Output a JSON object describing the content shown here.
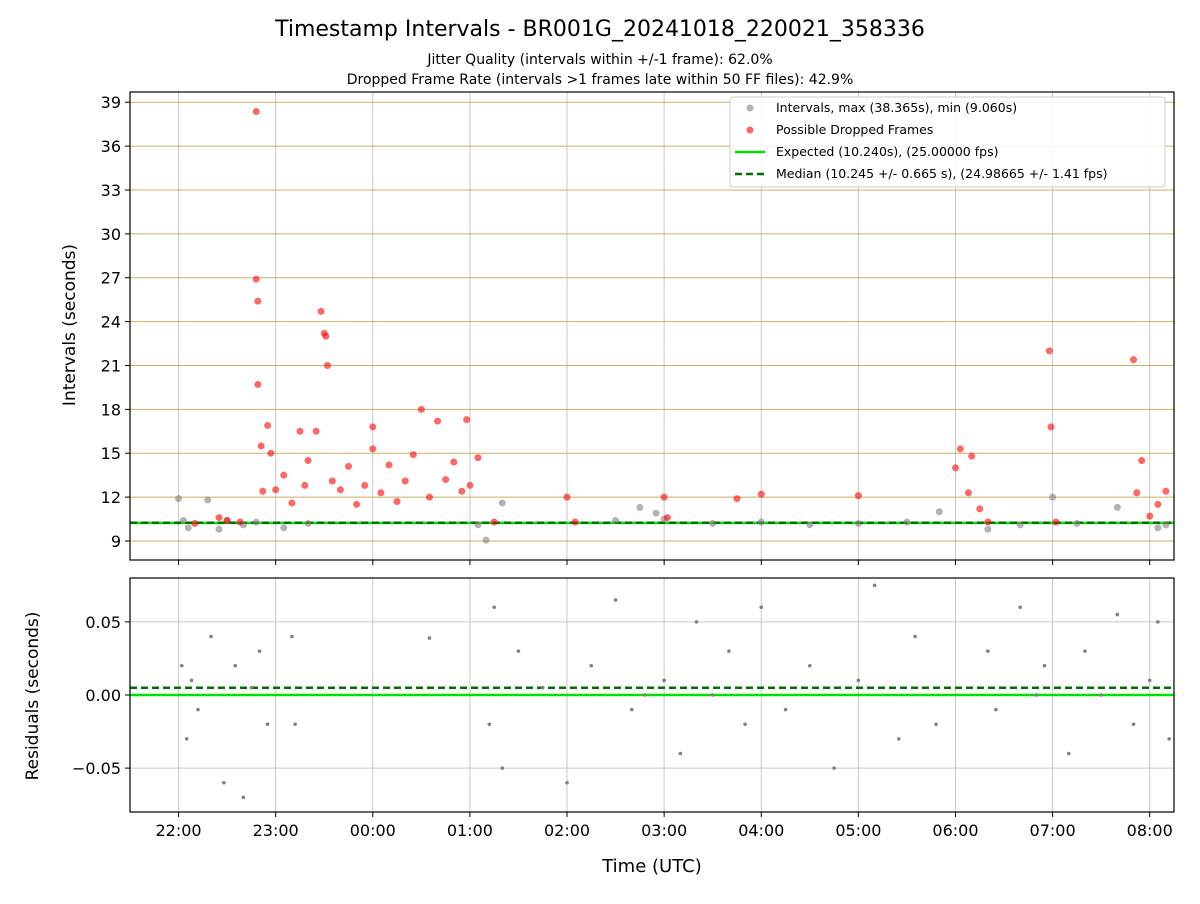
{
  "title": "Timestamp Intervals - BR001G_20241018_220021_358336",
  "subtitle_1": "Jitter Quality (intervals within +/-1 frame): 62.0%",
  "subtitle_2": "Dropped Frame Rate (intervals >1 frames late within 50 FF files): 42.9%",
  "colors": {
    "intervals": "#808080",
    "dropped": "#ff0000",
    "expected": "#00e000",
    "median": "#007000",
    "hgrid_top": "#c8b060",
    "grid": "#c8c8c8"
  },
  "chart_data": [
    {
      "type": "scatter",
      "panel": "top",
      "ylabel": "Intervals (seconds)",
      "ylim": [
        7.7,
        39.7
      ],
      "yticks": [
        "9",
        "12",
        "15",
        "18",
        "21",
        "24",
        "27",
        "30",
        "33",
        "36",
        "39"
      ],
      "xlim": [
        "21:30",
        "08:15"
      ],
      "x_hours": [
        21.5,
        32.25
      ],
      "xticks": [
        "22:00",
        "23:00",
        "00:00",
        "01:00",
        "02:00",
        "03:00",
        "04:00",
        "05:00",
        "06:00",
        "07:00",
        "08:00"
      ],
      "grid": true,
      "legend_position": "upper right",
      "legend": [
        "Intervals, max (38.365s), min (9.060s)",
        "Possible Dropped Frames",
        "Expected (10.240s), (25.00000 fps)",
        "Median (10.245 +/- 0.665 s), (24.98665 +/- 1.41 fps)"
      ],
      "expected": 10.24,
      "median": 10.245,
      "series": [
        {
          "name": "Intervals",
          "x": [
            "22:00",
            "22:03",
            "22:06",
            "22:18",
            "22:25",
            "22:30",
            "22:40",
            "22:48",
            "23:05",
            "23:20",
            "01:05",
            "01:10",
            "01:20",
            "02:30",
            "02:45",
            "02:55",
            "03:00",
            "03:30",
            "04:00",
            "04:30",
            "05:00",
            "05:30",
            "05:50",
            "06:20",
            "06:40",
            "07:00",
            "07:15",
            "07:40",
            "08:05",
            "08:10"
          ],
          "y": [
            11.9,
            10.4,
            9.9,
            11.8,
            9.8,
            10.4,
            10.1,
            10.3,
            9.9,
            10.2,
            10.1,
            9.06,
            11.6,
            10.4,
            11.3,
            10.9,
            10.5,
            10.2,
            10.3,
            10.1,
            10.2,
            10.3,
            11.0,
            9.8,
            10.1,
            12.0,
            10.2,
            11.3,
            9.9,
            10.1
          ]
        },
        {
          "name": "Possible Dropped Frames",
          "x": [
            "22:10",
            "22:25",
            "22:30",
            "22:38",
            "22:48",
            "22:48",
            "22:49",
            "22:49",
            "22:51",
            "22:52",
            "22:55",
            "22:57",
            "23:00",
            "23:05",
            "23:10",
            "23:15",
            "23:18",
            "23:20",
            "23:25",
            "23:28",
            "23:30",
            "23:31",
            "23:32",
            "23:35",
            "23:40",
            "23:45",
            "23:50",
            "23:55",
            "00:00",
            "00:00",
            "00:05",
            "00:10",
            "00:15",
            "00:20",
            "00:25",
            "00:30",
            "00:35",
            "00:40",
            "00:45",
            "00:50",
            "00:55",
            "00:58",
            "01:00",
            "01:05",
            "01:15",
            "02:00",
            "02:05",
            "03:00",
            "03:02",
            "03:45",
            "04:00",
            "05:00",
            "06:00",
            "06:03",
            "06:08",
            "06:10",
            "06:15",
            "06:20",
            "06:58",
            "06:59",
            "07:02",
            "07:50",
            "07:52",
            "07:55",
            "08:00",
            "08:05",
            "08:10"
          ],
          "y": [
            10.2,
            10.6,
            10.4,
            10.3,
            38.365,
            26.9,
            25.4,
            19.7,
            15.5,
            12.4,
            16.9,
            15.0,
            12.5,
            13.5,
            11.6,
            16.5,
            12.8,
            14.5,
            16.5,
            24.7,
            23.2,
            23.0,
            21.0,
            13.1,
            12.5,
            14.1,
            11.5,
            12.8,
            16.8,
            15.3,
            12.3,
            14.2,
            11.7,
            13.1,
            14.9,
            18.0,
            12.0,
            17.2,
            13.2,
            14.4,
            12.4,
            17.3,
            12.8,
            14.7,
            10.3,
            12.0,
            10.3,
            12.0,
            10.6,
            11.9,
            12.2,
            12.1,
            14.0,
            15.3,
            12.3,
            14.8,
            11.2,
            10.3,
            22.0,
            16.8,
            10.3,
            21.4,
            12.3,
            14.5,
            10.7,
            11.5,
            12.4
          ]
        }
      ]
    },
    {
      "type": "scatter",
      "panel": "bottom",
      "xlabel": "Time (UTC)",
      "ylabel": "Residuals (seconds)",
      "ylim": [
        -0.08,
        0.08
      ],
      "yticks": [
        "0.05",
        "0.00",
        "−0.05"
      ],
      "xlim": [
        "21:30",
        "08:15"
      ],
      "xticks": [
        "22:00",
        "23:00",
        "00:00",
        "01:00",
        "02:00",
        "03:00",
        "04:00",
        "05:00",
        "06:00",
        "07:00",
        "08:00"
      ],
      "grid": true,
      "expected": 0.0,
      "median": 0.005,
      "series": [
        {
          "name": "Residuals",
          "x": [
            "22:02",
            "22:05",
            "22:08",
            "22:12",
            "22:20",
            "22:28",
            "22:35",
            "22:40",
            "22:45",
            "22:50",
            "22:55",
            "23:10",
            "23:12",
            "00:35",
            "01:12",
            "01:15",
            "01:20",
            "01:30",
            "01:45",
            "02:00",
            "02:15",
            "02:30",
            "02:40",
            "02:48",
            "03:00",
            "03:10",
            "03:20",
            "03:30",
            "03:40",
            "03:50",
            "04:00",
            "04:15",
            "04:30",
            "04:45",
            "05:00",
            "05:10",
            "05:25",
            "05:35",
            "05:48",
            "06:20",
            "06:25",
            "06:40",
            "06:50",
            "06:55",
            "07:10",
            "07:20",
            "07:30",
            "07:40",
            "07:50",
            "08:00",
            "08:05",
            "08:12"
          ],
          "y": [
            0.02,
            -0.03,
            0.01,
            -0.01,
            0.04,
            -0.06,
            0.02,
            -0.07,
            0.005,
            0.03,
            -0.02,
            0.04,
            -0.02,
            0.039,
            -0.02,
            0.06,
            -0.05,
            0.03,
            0.005,
            -0.06,
            0.02,
            0.065,
            -0.01,
            0.0,
            0.01,
            -0.04,
            0.05,
            0.0,
            0.03,
            -0.02,
            0.06,
            -0.01,
            0.02,
            -0.05,
            0.01,
            0.075,
            -0.03,
            0.04,
            -0.02,
            0.03,
            -0.01,
            0.06,
            0.0,
            0.02,
            -0.04,
            0.03,
            0.0,
            0.055,
            -0.02,
            0.01,
            0.05,
            -0.03
          ]
        }
      ]
    }
  ],
  "axes": {
    "xlabel": "Time (UTC)",
    "top_ylabel": "Intervals (seconds)",
    "bottom_ylabel": "Residuals (seconds)"
  }
}
